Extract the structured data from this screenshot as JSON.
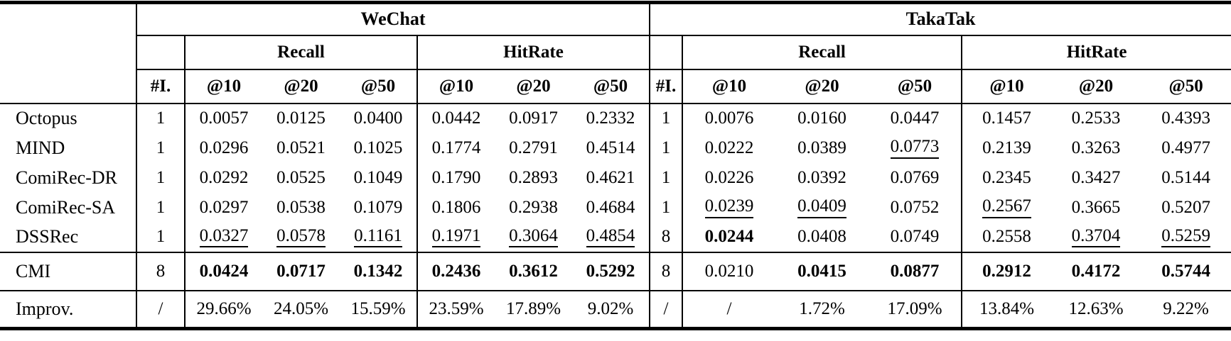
{
  "page": {
    "background": "#ffffff",
    "text_color": "#000000"
  },
  "table": {
    "datasets": [
      {
        "name": "WeChat"
      },
      {
        "name": "TakaTak"
      }
    ],
    "interactions_header": "#I.",
    "metric_groups": [
      "Recall",
      "HitRate"
    ],
    "cutoffs": [
      "@10",
      "@20",
      "@50"
    ],
    "rows": [
      {
        "method": "Octopus",
        "type": "baseline",
        "cells": [
          {
            "v": "1"
          },
          {
            "v": "0.0057"
          },
          {
            "v": "0.0125"
          },
          {
            "v": "0.0400"
          },
          {
            "v": "0.0442"
          },
          {
            "v": "0.0917"
          },
          {
            "v": "0.2332"
          },
          {
            "v": "1"
          },
          {
            "v": "0.0076"
          },
          {
            "v": "0.0160"
          },
          {
            "v": "0.0447"
          },
          {
            "v": "0.1457"
          },
          {
            "v": "0.2533"
          },
          {
            "v": "0.4393"
          }
        ]
      },
      {
        "method": "MIND",
        "type": "baseline",
        "cells": [
          {
            "v": "1"
          },
          {
            "v": "0.0296"
          },
          {
            "v": "0.0521"
          },
          {
            "v": "0.1025"
          },
          {
            "v": "0.1774"
          },
          {
            "v": "0.2791"
          },
          {
            "v": "0.4514"
          },
          {
            "v": "1"
          },
          {
            "v": "0.0222"
          },
          {
            "v": "0.0389"
          },
          {
            "v": "0.0773",
            "u": true
          },
          {
            "v": "0.2139"
          },
          {
            "v": "0.3263"
          },
          {
            "v": "0.4977"
          }
        ]
      },
      {
        "method": "ComiRec-DR",
        "type": "baseline",
        "cells": [
          {
            "v": "1"
          },
          {
            "v": "0.0292"
          },
          {
            "v": "0.0525"
          },
          {
            "v": "0.1049"
          },
          {
            "v": "0.1790"
          },
          {
            "v": "0.2893"
          },
          {
            "v": "0.4621"
          },
          {
            "v": "1"
          },
          {
            "v": "0.0226"
          },
          {
            "v": "0.0392"
          },
          {
            "v": "0.0769"
          },
          {
            "v": "0.2345"
          },
          {
            "v": "0.3427"
          },
          {
            "v": "0.5144"
          }
        ]
      },
      {
        "method": "ComiRec-SA",
        "type": "baseline",
        "cells": [
          {
            "v": "1"
          },
          {
            "v": "0.0297"
          },
          {
            "v": "0.0538"
          },
          {
            "v": "0.1079"
          },
          {
            "v": "0.1806"
          },
          {
            "v": "0.2938"
          },
          {
            "v": "0.4684"
          },
          {
            "v": "1"
          },
          {
            "v": "0.0239",
            "u": true
          },
          {
            "v": "0.0409",
            "u": true
          },
          {
            "v": "0.0752"
          },
          {
            "v": "0.2567",
            "u": true
          },
          {
            "v": "0.3665"
          },
          {
            "v": "0.5207"
          }
        ]
      },
      {
        "method": "DSSRec",
        "type": "baseline",
        "cells": [
          {
            "v": "1"
          },
          {
            "v": "0.0327",
            "u": true
          },
          {
            "v": "0.0578",
            "u": true
          },
          {
            "v": "0.1161",
            "u": true
          },
          {
            "v": "0.1971",
            "u": true
          },
          {
            "v": "0.3064",
            "u": true
          },
          {
            "v": "0.4854",
            "u": true
          },
          {
            "v": "8"
          },
          {
            "v": "0.0244",
            "b": true
          },
          {
            "v": "0.0408"
          },
          {
            "v": "0.0749"
          },
          {
            "v": "0.2558"
          },
          {
            "v": "0.3704",
            "u": true
          },
          {
            "v": "0.5259",
            "u": true
          }
        ]
      },
      {
        "method": "CMI",
        "type": "cmi",
        "cells": [
          {
            "v": "8"
          },
          {
            "v": "0.0424",
            "b": true
          },
          {
            "v": "0.0717",
            "b": true
          },
          {
            "v": "0.1342",
            "b": true
          },
          {
            "v": "0.2436",
            "b": true
          },
          {
            "v": "0.3612",
            "b": true
          },
          {
            "v": "0.5292",
            "b": true
          },
          {
            "v": "8"
          },
          {
            "v": "0.0210"
          },
          {
            "v": "0.0415",
            "b": true
          },
          {
            "v": "0.0877",
            "b": true
          },
          {
            "v": "0.2912",
            "b": true
          },
          {
            "v": "0.4172",
            "b": true
          },
          {
            "v": "0.5744",
            "b": true
          }
        ]
      },
      {
        "method": "Improv.",
        "type": "improv",
        "cells": [
          {
            "v": "/"
          },
          {
            "v": "29.66%"
          },
          {
            "v": "24.05%"
          },
          {
            "v": "15.59%"
          },
          {
            "v": "23.59%"
          },
          {
            "v": "17.89%"
          },
          {
            "v": "9.02%"
          },
          {
            "v": "/"
          },
          {
            "v": "/"
          },
          {
            "v": "1.72%"
          },
          {
            "v": "17.09%"
          },
          {
            "v": "13.84%"
          },
          {
            "v": "12.63%"
          },
          {
            "v": "9.22%"
          }
        ]
      }
    ]
  }
}
